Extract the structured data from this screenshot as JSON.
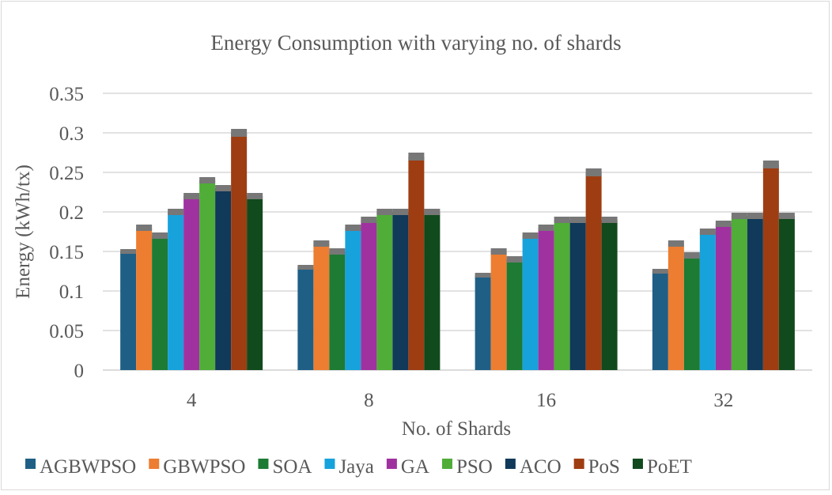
{
  "chart_data": {
    "type": "bar",
    "title": "Energy Consumption with varying no. of shards",
    "xlabel": "No. of Shards",
    "ylabel": "Energy (kWh/tx)",
    "ylim": [
      0,
      0.35
    ],
    "yticks": [
      "0",
      "0.05",
      "0.1",
      "0.15",
      "0.2",
      "0.25",
      "0.3",
      "0.35"
    ],
    "grid": true,
    "legend_position": "bottom",
    "error_bars": true,
    "categories": [
      "4",
      "8",
      "16",
      "32"
    ],
    "series": [
      {
        "name": "AGBWPSO",
        "color": "#1f5f86",
        "values": [
          0.15,
          0.13,
          0.12,
          0.125
        ],
        "error": [
          0.003,
          0.003,
          0.003,
          0.003
        ]
      },
      {
        "name": "GBWPSO",
        "color": "#ed7d31",
        "values": [
          0.18,
          0.16,
          0.15,
          0.16
        ],
        "error": [
          0.004,
          0.004,
          0.004,
          0.004
        ]
      },
      {
        "name": "SOA",
        "color": "#1e7b34",
        "values": [
          0.17,
          0.15,
          0.14,
          0.145
        ],
        "error": [
          0.004,
          0.004,
          0.004,
          0.004
        ]
      },
      {
        "name": "Jaya",
        "color": "#17a2dc",
        "values": [
          0.2,
          0.18,
          0.17,
          0.175
        ],
        "error": [
          0.004,
          0.004,
          0.004,
          0.004
        ]
      },
      {
        "name": "GA",
        "color": "#a032a0",
        "values": [
          0.22,
          0.19,
          0.18,
          0.185
        ],
        "error": [
          0.004,
          0.004,
          0.004,
          0.004
        ]
      },
      {
        "name": "PSO",
        "color": "#4fad38",
        "values": [
          0.24,
          0.2,
          0.19,
          0.195
        ],
        "error": [
          0.004,
          0.004,
          0.004,
          0.004
        ]
      },
      {
        "name": "ACO",
        "color": "#10395a",
        "values": [
          0.23,
          0.2,
          0.19,
          0.195
        ],
        "error": [
          0.004,
          0.004,
          0.004,
          0.004
        ]
      },
      {
        "name": "PoS",
        "color": "#9e3d12",
        "values": [
          0.3,
          0.27,
          0.25,
          0.26
        ],
        "error": [
          0.005,
          0.005,
          0.005,
          0.005
        ]
      },
      {
        "name": "PoET",
        "color": "#114a1d",
        "values": [
          0.22,
          0.2,
          0.19,
          0.195
        ],
        "error": [
          0.004,
          0.004,
          0.004,
          0.004
        ]
      }
    ]
  }
}
